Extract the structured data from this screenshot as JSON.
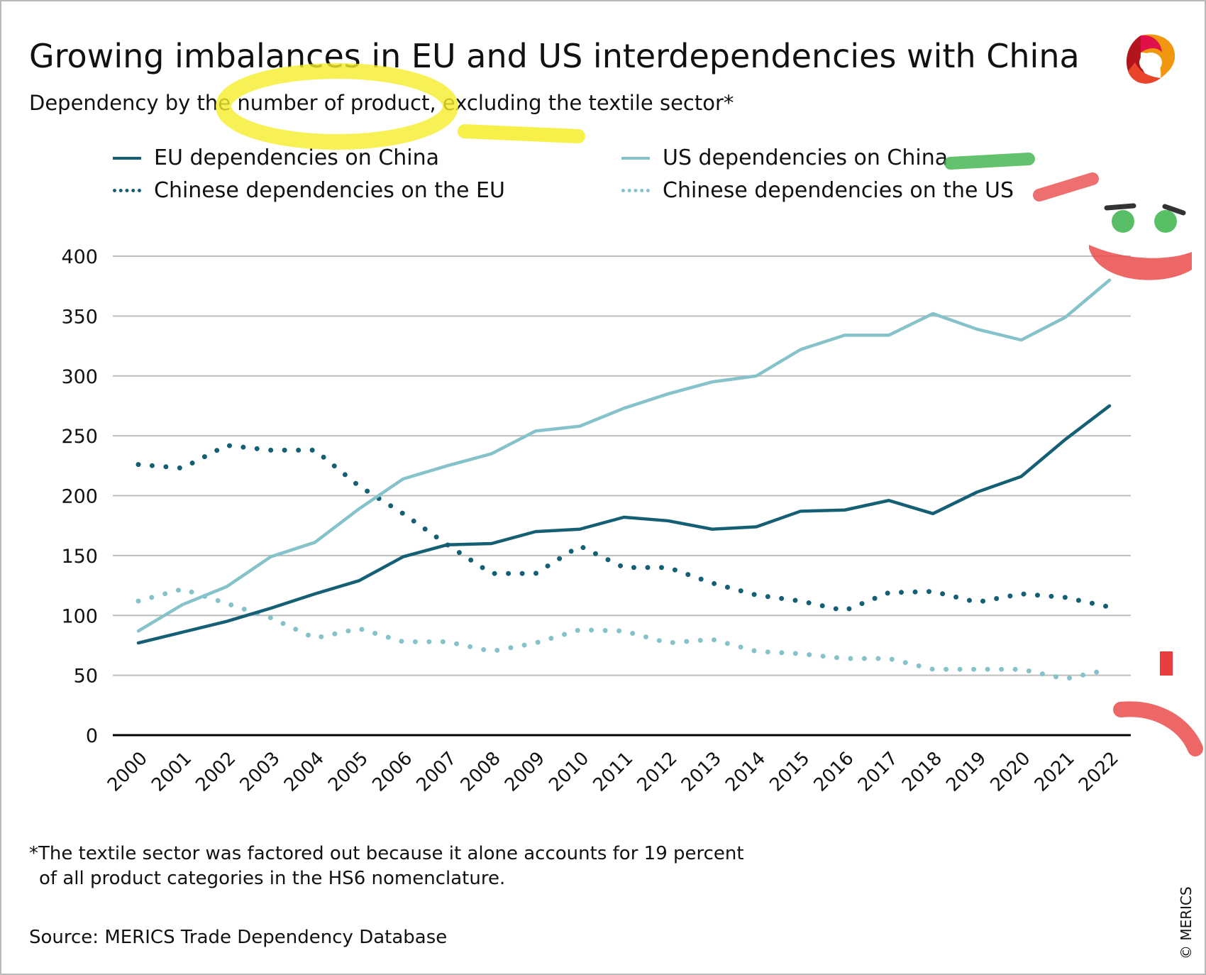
{
  "header": {
    "title": "Growing imbalances in EU and US interdependencies with China",
    "subtitle": "Dependency by the number of product, excluding the textile sector*"
  },
  "logo": {
    "name": "MERICS",
    "icon": "merics-logo-icon"
  },
  "footnote": {
    "line1": "*The textile sector was factored out because it alone accounts for 19 percent",
    "line2": "of all product categories in the HS6 nomenclature."
  },
  "source": "Source: MERICS Trade Dependency Database",
  "copyright": "© MERICS",
  "chart_data": {
    "type": "line",
    "title": "Growing imbalances in EU and US interdependencies with China",
    "subtitle": "Dependency by the number of product, excluding the textile sector*",
    "xlabel": "",
    "ylabel": "",
    "ylim": [
      0,
      400
    ],
    "yticks": [
      0,
      50,
      100,
      150,
      200,
      250,
      300,
      350,
      400
    ],
    "grid": true,
    "legend_placement": "top",
    "categories": [
      "2000",
      "2001",
      "2002",
      "2003",
      "2004",
      "2005",
      "2006",
      "2007",
      "2008",
      "2009",
      "2010",
      "2011",
      "2012",
      "2013",
      "2014",
      "2015",
      "2016",
      "2017",
      "2018",
      "2019",
      "2020",
      "2021",
      "2022"
    ],
    "series": [
      {
        "name": "EU dependencies on China",
        "style": "solid",
        "color": "#145f74",
        "values": [
          77,
          86,
          95,
          106,
          118,
          129,
          149,
          159,
          160,
          170,
          172,
          182,
          179,
          172,
          174,
          187,
          188,
          196,
          185,
          203,
          216,
          247,
          275
        ]
      },
      {
        "name": "US dependencies on China",
        "style": "solid",
        "color": "#86c2ca",
        "values": [
          87,
          109,
          124,
          149,
          161,
          189,
          214,
          225,
          235,
          254,
          258,
          273,
          285,
          295,
          300,
          322,
          334,
          334,
          352,
          339,
          330,
          349,
          380
        ]
      },
      {
        "name": "Chinese dependencies on the EU",
        "style": "dotted",
        "color": "#145f74",
        "values": [
          226,
          223,
          242,
          238,
          238,
          208,
          185,
          159,
          135,
          135,
          158,
          140,
          140,
          127,
          117,
          112,
          104,
          119,
          120,
          111,
          118,
          115,
          107
        ]
      },
      {
        "name": "Chinese dependencies on the US",
        "style": "dotted",
        "color": "#86c2ca",
        "values": [
          112,
          122,
          110,
          98,
          81,
          89,
          78,
          78,
          70,
          77,
          88,
          87,
          77,
          80,
          70,
          68,
          64,
          64,
          55,
          55,
          55,
          47,
          55
        ]
      }
    ]
  }
}
